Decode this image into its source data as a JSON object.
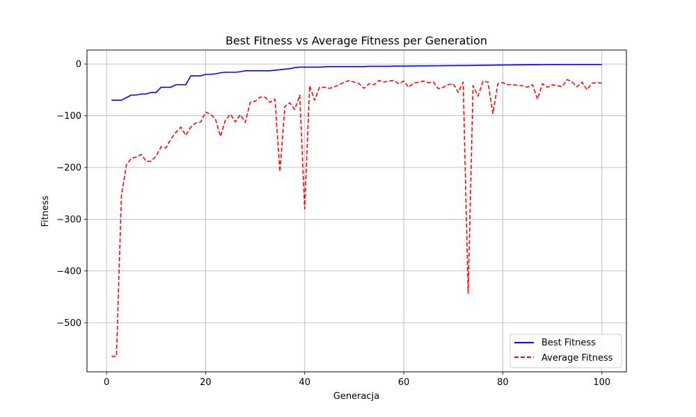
{
  "chart_data": {
    "type": "line",
    "title": "Best Fitness vs Average Fitness per Generation",
    "xlabel": "Generacja",
    "ylabel": "Fitness",
    "xlim": [
      -3.95,
      104.95
    ],
    "ylim": [
      -595,
      27
    ],
    "xticks": [
      0,
      20,
      40,
      60,
      80,
      100
    ],
    "xtick_labels": [
      "0",
      "20",
      "40",
      "60",
      "80",
      "100"
    ],
    "yticks": [
      -500,
      -400,
      -300,
      -200,
      -100,
      0
    ],
    "ytick_labels": [
      "−500",
      "−400",
      "−300",
      "−200",
      "−100",
      "0"
    ],
    "grid": true,
    "legend_position": "lower right",
    "x": [
      1,
      2,
      3,
      4,
      5,
      6,
      7,
      8,
      9,
      10,
      11,
      12,
      13,
      14,
      15,
      16,
      17,
      18,
      19,
      20,
      21,
      22,
      23,
      24,
      25,
      26,
      27,
      28,
      29,
      30,
      31,
      32,
      33,
      34,
      35,
      36,
      37,
      38,
      39,
      40,
      41,
      42,
      43,
      44,
      45,
      46,
      47,
      48,
      49,
      50,
      51,
      52,
      53,
      54,
      55,
      56,
      57,
      58,
      59,
      60,
      61,
      62,
      63,
      64,
      65,
      66,
      67,
      68,
      69,
      70,
      71,
      72,
      73,
      74,
      75,
      76,
      77,
      78,
      79,
      80,
      81,
      82,
      83,
      84,
      85,
      86,
      87,
      88,
      89,
      90,
      91,
      92,
      93,
      94,
      95,
      96,
      97,
      98,
      99,
      100
    ],
    "series": [
      {
        "name": "Best Fitness",
        "color": "#0000ff",
        "style": "solid",
        "values": [
          -70,
          -70,
          -70,
          -65,
          -60,
          -60,
          -58,
          -58,
          -55,
          -55,
          -45,
          -45,
          -45,
          -40,
          -40,
          -40,
          -23,
          -23,
          -23,
          -20,
          -20,
          -19,
          -17,
          -16,
          -16,
          -16,
          -15,
          -13,
          -13,
          -13,
          -13,
          -13,
          -13,
          -12,
          -11,
          -10,
          -9,
          -7,
          -6,
          -6,
          -6,
          -6,
          -6,
          -5.5,
          -5,
          -5,
          -5,
          -5,
          -5,
          -5,
          -5,
          -5,
          -4.5,
          -4.5,
          -4.5,
          -4.5,
          -4.5,
          -4.2,
          -4,
          -4,
          -4,
          -3.8,
          -3.6,
          -3.6,
          -3.5,
          -3.5,
          -3.4,
          -3.3,
          -3.2,
          -3.1,
          -3,
          -3,
          -3,
          -2.8,
          -2.7,
          -2.5,
          -2.3,
          -2.2,
          -2,
          -2,
          -1.9,
          -1.8,
          -1.7,
          -1.6,
          -1.5,
          -1.4,
          -1.3,
          -1.2,
          -1.1,
          -1,
          -1,
          -1,
          -1,
          -1,
          -1,
          -1,
          -1,
          -1,
          -1,
          -1
        ]
      },
      {
        "name": "Average Fitness",
        "color": "#ff0000",
        "style": "dashed",
        "values": [
          -565,
          -565,
          -255,
          -195,
          -182,
          -180,
          -175,
          -188,
          -188,
          -178,
          -160,
          -162,
          -145,
          -132,
          -122,
          -138,
          -122,
          -114,
          -112,
          -93,
          -97,
          -107,
          -140,
          -108,
          -97,
          -112,
          -98,
          -113,
          -74,
          -72,
          -64,
          -64,
          -74,
          -68,
          -208,
          -82,
          -75,
          -88,
          -60,
          -280,
          -42,
          -70,
          -45,
          -45,
          -47,
          -44,
          -40,
          -35,
          -32,
          -35,
          -38,
          -47,
          -38,
          -40,
          -32,
          -35,
          -33,
          -32,
          -38,
          -33,
          -45,
          -37,
          -35,
          -33,
          -36,
          -35,
          -48,
          -45,
          -40,
          -38,
          -55,
          -35,
          -443,
          -42,
          -62,
          -33,
          -35,
          -96,
          -38,
          -36,
          -40,
          -40,
          -41,
          -42,
          -45,
          -40,
          -68,
          -38,
          -45,
          -40,
          -42,
          -44,
          -30,
          -35,
          -44,
          -35,
          -50,
          -37,
          -36,
          -37
        ]
      }
    ]
  }
}
